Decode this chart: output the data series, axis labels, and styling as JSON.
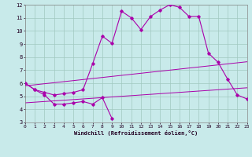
{
  "xlabel": "Windchill (Refroidissement éolien,°C)",
  "xlim": [
    0,
    23
  ],
  "ylim": [
    3,
    12
  ],
  "xticks": [
    0,
    1,
    2,
    3,
    4,
    5,
    6,
    7,
    8,
    9,
    10,
    11,
    12,
    13,
    14,
    15,
    16,
    17,
    18,
    19,
    20,
    21,
    22,
    23
  ],
  "yticks": [
    3,
    4,
    5,
    6,
    7,
    8,
    9,
    10,
    11,
    12
  ],
  "background_color": "#c8eaea",
  "grid_color": "#a0c8c0",
  "line_color": "#aa00aa",
  "line1_y": [
    6.0,
    5.5,
    5.1,
    4.4,
    4.4,
    4.5,
    4.6,
    4.4,
    4.9,
    3.3
  ],
  "line2_y": [
    6.0,
    5.5,
    5.3,
    5.1,
    5.2,
    5.3,
    5.5,
    7.5,
    9.6,
    9.05,
    11.5,
    11.0,
    10.1,
    11.1,
    11.6,
    12.0,
    11.8,
    11.1,
    11.1,
    8.3,
    7.6,
    6.3,
    5.1,
    4.8
  ],
  "line3_y": [
    4.5,
    4.55,
    4.6,
    4.65,
    4.7,
    4.75,
    4.8,
    4.85,
    4.9,
    4.95,
    5.0,
    5.05,
    5.1,
    5.15,
    5.2,
    5.25,
    5.3,
    5.35,
    5.4,
    5.45,
    5.5,
    5.55,
    5.6,
    5.65
  ],
  "line4_y": [
    5.8,
    5.88,
    5.96,
    6.04,
    6.12,
    6.2,
    6.28,
    6.36,
    6.44,
    6.52,
    6.6,
    6.68,
    6.76,
    6.84,
    6.92,
    7.0,
    7.08,
    7.16,
    7.24,
    7.32,
    7.4,
    7.48,
    7.56,
    7.64
  ]
}
